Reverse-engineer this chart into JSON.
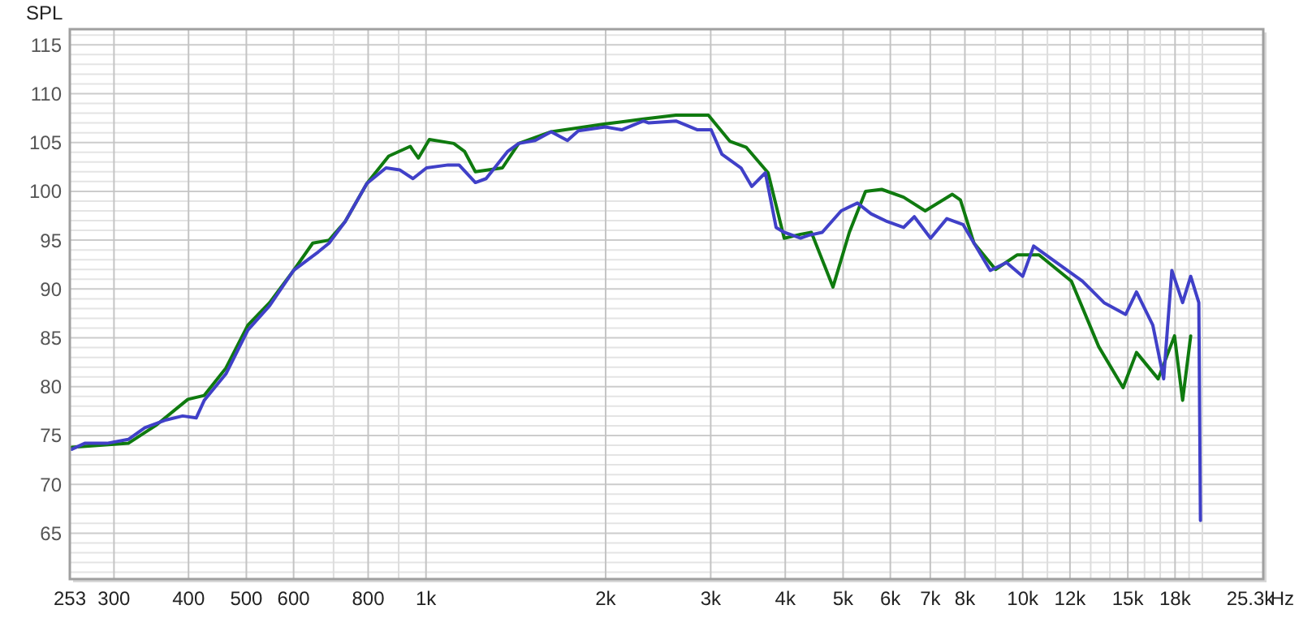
{
  "chart_data": {
    "type": "line",
    "ylabel": "SPL",
    "xlabel": "Hz",
    "log": "x",
    "grid": true,
    "line_style": "solid",
    "marker": "none",
    "xlim": [
      253,
      25300
    ],
    "ylim": [
      60.3,
      116.6
    ],
    "xticks": [
      253,
      300,
      400,
      500,
      600,
      {
        "value": 700,
        "label": null
      },
      800,
      {
        "value": 900,
        "label": null
      },
      {
        "value": 1000,
        "label": "1k"
      },
      {
        "value": 2000,
        "label": "2k"
      },
      {
        "value": 3000,
        "label": "3k"
      },
      {
        "value": 4000,
        "label": "4k"
      },
      {
        "value": 5000,
        "label": "5k"
      },
      {
        "value": 6000,
        "label": "6k"
      },
      {
        "value": 7000,
        "label": "7k"
      },
      {
        "value": 8000,
        "label": "8k"
      },
      {
        "value": 9000,
        "label": null
      },
      {
        "value": 10000,
        "label": "10k"
      },
      {
        "value": 11000,
        "label": null
      },
      {
        "value": 12000,
        "label": "12k"
      },
      {
        "value": 13000,
        "label": null
      },
      {
        "value": 14000,
        "label": null
      },
      {
        "value": 15000,
        "label": "15k"
      },
      {
        "value": 16000,
        "label": null
      },
      {
        "value": 17000,
        "label": null
      },
      {
        "value": 18000,
        "label": "18k"
      },
      {
        "value": 19000,
        "label": null
      },
      {
        "value": 20000,
        "label": null
      },
      {
        "value": 25300,
        "label": "25.3k"
      }
    ],
    "yticks": [
      {
        "value": 61,
        "label": null
      },
      {
        "value": 62,
        "label": null
      },
      {
        "value": 63,
        "label": null
      },
      {
        "value": 64,
        "label": null
      },
      65,
      {
        "value": 66,
        "label": null
      },
      {
        "value": 67,
        "label": null
      },
      {
        "value": 68,
        "label": null
      },
      {
        "value": 69,
        "label": null
      },
      70,
      {
        "value": 71,
        "label": null
      },
      {
        "value": 72,
        "label": null
      },
      {
        "value": 73,
        "label": null
      },
      {
        "value": 74,
        "label": null
      },
      75,
      {
        "value": 76,
        "label": null
      },
      {
        "value": 77,
        "label": null
      },
      {
        "value": 78,
        "label": null
      },
      {
        "value": 79,
        "label": null
      },
      80,
      {
        "value": 81,
        "label": null
      },
      {
        "value": 82,
        "label": null
      },
      {
        "value": 83,
        "label": null
      },
      {
        "value": 84,
        "label": null
      },
      85,
      {
        "value": 86,
        "label": null
      },
      {
        "value": 87,
        "label": null
      },
      {
        "value": 88,
        "label": null
      },
      {
        "value": 89,
        "label": null
      },
      90,
      {
        "value": 91,
        "label": null
      },
      {
        "value": 92,
        "label": null
      },
      {
        "value": 93,
        "label": null
      },
      {
        "value": 94,
        "label": null
      },
      95,
      {
        "value": 96,
        "label": null
      },
      {
        "value": 97,
        "label": null
      },
      {
        "value": 98,
        "label": null
      },
      {
        "value": 99,
        "label": null
      },
      100,
      {
        "value": 101,
        "label": null
      },
      {
        "value": 102,
        "label": null
      },
      {
        "value": 103,
        "label": null
      },
      {
        "value": 104,
        "label": null
      },
      105,
      {
        "value": 106,
        "label": null
      },
      {
        "value": 107,
        "label": null
      },
      {
        "value": 108,
        "label": null
      },
      {
        "value": 109,
        "label": null
      },
      110,
      {
        "value": 111,
        "label": null
      },
      {
        "value": 112,
        "label": null
      },
      {
        "value": 113,
        "label": null
      },
      {
        "value": 114,
        "label": null
      },
      115,
      {
        "value": 116,
        "label": null
      }
    ],
    "series": [
      {
        "color": "#0f7a0f",
        "x": [
          255,
          317,
          352,
          399,
          425,
          462,
          503,
          547,
          600,
          646,
          688,
          732,
          796,
          866,
          941,
          971,
          1013,
          1113,
          1160,
          1210,
          1343,
          1430,
          1621,
          1998,
          2313,
          2623,
          2973,
          3233,
          3442,
          3743,
          3984,
          4243,
          4424,
          4809,
          5122,
          5452,
          5804,
          6314,
          6864,
          7621,
          7864,
          8285,
          9005,
          9795,
          10650,
          12067,
          13407,
          14730,
          15511,
          16866,
          17963,
          18533,
          19120
        ],
        "values": [
          73.8,
          74.2,
          76.0,
          78.7,
          79.1,
          81.9,
          86.3,
          88.6,
          91.9,
          94.7,
          95.0,
          96.9,
          100.8,
          103.6,
          104.6,
          103.4,
          105.3,
          104.9,
          104.1,
          102.0,
          102.4,
          104.9,
          106.1,
          106.9,
          107.4,
          107.8,
          107.8,
          105.1,
          104.5,
          101.9,
          95.2,
          95.6,
          95.8,
          90.2,
          95.8,
          100.0,
          100.2,
          99.4,
          98.0,
          99.7,
          99.1,
          94.7,
          92.0,
          93.5,
          93.5,
          90.8,
          84.1,
          79.9,
          83.5,
          80.8,
          85.2,
          78.6,
          85.2
        ]
      },
      {
        "color": "#4040c8",
        "x": [
          255,
          268,
          292,
          317,
          338,
          367,
          391,
          412,
          425,
          462,
          503,
          547,
          600,
          660,
          688,
          732,
          796,
          857,
          903,
          951,
          1002,
          1089,
          1136,
          1210,
          1261,
          1371,
          1430,
          1523,
          1621,
          1726,
          1800,
          1998,
          2128,
          2313,
          2362,
          2623,
          2851,
          3005,
          3132,
          3372,
          3516,
          3705,
          3861,
          3984,
          4243,
          4377,
          4613,
          4963,
          5284,
          5570,
          5929,
          6314,
          6582,
          7008,
          7461,
          7943,
          8285,
          8822,
          9393,
          10000,
          10430,
          11574,
          12589,
          13684,
          14877,
          15511,
          16519,
          17226,
          17779,
          18533,
          19120,
          19730,
          19853
        ],
        "values": [
          73.6,
          74.2,
          74.2,
          74.6,
          75.8,
          76.6,
          77.0,
          76.8,
          78.6,
          81.3,
          85.8,
          88.3,
          91.9,
          93.8,
          94.7,
          96.9,
          100.8,
          102.4,
          102.2,
          101.3,
          102.4,
          102.7,
          102.7,
          100.9,
          101.3,
          104.1,
          104.9,
          105.2,
          106.1,
          105.2,
          106.2,
          106.6,
          106.3,
          107.2,
          107.0,
          107.2,
          106.3,
          106.3,
          103.8,
          102.4,
          100.5,
          101.9,
          96.3,
          95.8,
          95.2,
          95.5,
          95.8,
          98.0,
          98.8,
          97.7,
          96.9,
          96.3,
          97.4,
          95.2,
          97.2,
          96.6,
          94.7,
          91.9,
          92.7,
          91.3,
          94.4,
          92.4,
          90.8,
          88.6,
          87.4,
          89.7,
          86.3,
          80.8,
          91.9,
          88.6,
          91.3,
          88.6,
          66.3
        ]
      }
    ]
  }
}
